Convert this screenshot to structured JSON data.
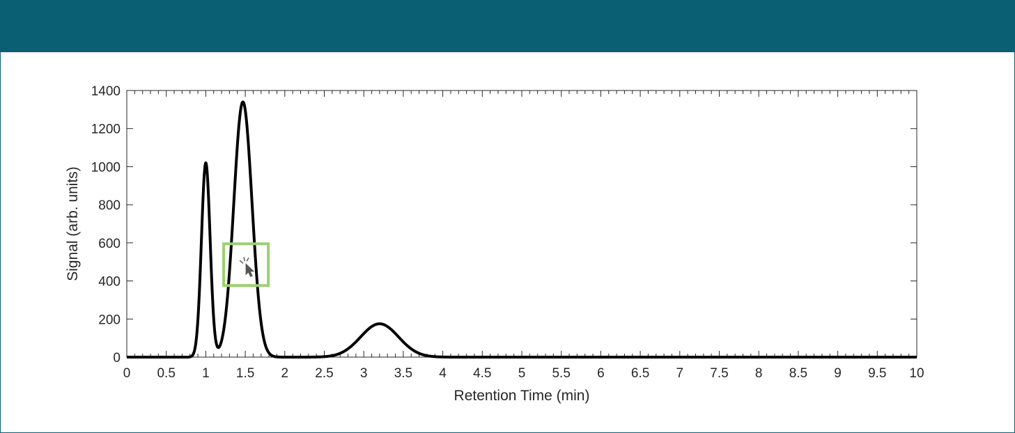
{
  "colors": {
    "header": "#0b5f73",
    "line": "#000000",
    "axis": "#262626",
    "highlight": "#9bd16f",
    "cursor": "#555555"
  },
  "cursor": {
    "icon": "cursor-click-icon",
    "x_min": 1.5,
    "y_signal": 500
  },
  "chart_data": {
    "type": "line",
    "xlabel": "Retention Time (min)",
    "ylabel": "Signal (arb. units)",
    "xlim": [
      0,
      10
    ],
    "ylim": [
      0,
      1400
    ],
    "xticks": [
      0,
      0.5,
      1,
      1.5,
      2,
      2.5,
      3,
      3.5,
      4,
      4.5,
      5,
      5.5,
      6,
      6.5,
      7,
      7.5,
      8,
      8.5,
      9,
      9.5,
      10
    ],
    "xtick_labels": [
      "0",
      "0.5",
      "1",
      "1.5",
      "2",
      "2.5",
      "3",
      "3.5",
      "4",
      "4.5",
      "5",
      "5.5",
      "6",
      "6.5",
      "7",
      "7.5",
      "8",
      "8.5",
      "9",
      "9.5",
      "10"
    ],
    "yticks": [
      0,
      200,
      400,
      600,
      800,
      1000,
      1200,
      1400
    ],
    "ytick_labels": [
      "0",
      "200",
      "400",
      "600",
      "800",
      "1000",
      "1200",
      "1400"
    ],
    "grid": false,
    "series": [
      {
        "peaks": [
          {
            "center": 1.0,
            "height": 1020,
            "sigma": 0.055
          },
          {
            "center": 1.47,
            "height": 1340,
            "sigma": 0.115
          },
          {
            "center": 3.2,
            "height": 175,
            "sigma": 0.24
          }
        ]
      }
    ]
  }
}
